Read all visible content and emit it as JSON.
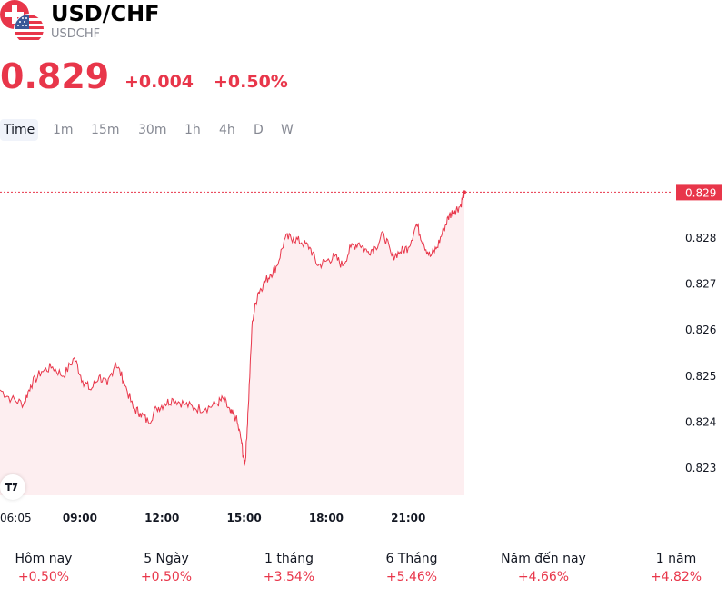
{
  "header": {
    "symbol": "USD/CHF",
    "ticker": "USDCHF"
  },
  "quote": {
    "price": "0.829",
    "change": "+0.004",
    "change_pct": "+0.50%"
  },
  "timeframes": [
    {
      "label": "Time",
      "active": true
    },
    {
      "label": "1m",
      "active": false
    },
    {
      "label": "15m",
      "active": false
    },
    {
      "label": "30m",
      "active": false
    },
    {
      "label": "1h",
      "active": false
    },
    {
      "label": "4h",
      "active": false
    },
    {
      "label": "D",
      "active": false
    },
    {
      "label": "W",
      "active": false
    }
  ],
  "periods": [
    {
      "label": "Hôm nay",
      "value": "+0.50%"
    },
    {
      "label": "5 Ngày",
      "value": "+0.50%"
    },
    {
      "label": "1 tháng",
      "value": "+3.54%"
    },
    {
      "label": "6 Tháng",
      "value": "+5.46%"
    },
    {
      "label": "Năm đến nay",
      "value": "+4.66%"
    },
    {
      "label": "1 năm",
      "value": "+4.82%"
    }
  ],
  "colors": {
    "accent": "#e8364a",
    "area_fill": "#fdeef0",
    "text": "#131722",
    "muted": "#868993"
  },
  "icons": {
    "flags": "usd-chf-flags-icon",
    "logo": "tradingview-logo-icon"
  },
  "chart_data": {
    "type": "area",
    "x_tick_labels": [
      "06:05",
      "09:00",
      "12:00",
      "15:00",
      "18:00",
      "21:00"
    ],
    "x_ticks": [
      6.08,
      9,
      12,
      15,
      18,
      21
    ],
    "y_tick_labels": [
      "0.823",
      "0.824",
      "0.825",
      "0.826",
      "0.827",
      "0.828",
      "0.829"
    ],
    "y_ticks": [
      0.823,
      0.824,
      0.825,
      0.826,
      0.827,
      0.828,
      0.829
    ],
    "ylim": [
      0.8224,
      0.8296
    ],
    "xlim": [
      6.08,
      23.2
    ],
    "last_value_label": "0.829",
    "grid": false,
    "series": [
      {
        "x": [
          6.08,
          6.5,
          6.95,
          7.2,
          7.6,
          8.0,
          8.4,
          8.8,
          9.1,
          9.4,
          9.7,
          10.0,
          10.3,
          10.6,
          10.95,
          11.2,
          11.5,
          11.8,
          12.1,
          12.4,
          12.8,
          13.2,
          13.6,
          14.0,
          14.25,
          14.5,
          14.7,
          14.9,
          15.0,
          15.05,
          15.15,
          15.3,
          15.5,
          15.7,
          15.95,
          16.2,
          16.5,
          16.8,
          17.1,
          17.4,
          17.7,
          18.0,
          18.3,
          18.6,
          18.9,
          19.2,
          19.5,
          19.8,
          20.1,
          20.4,
          20.7,
          21.0,
          21.3,
          21.55,
          21.8,
          22.05,
          22.3,
          22.5,
          22.7,
          22.9,
          23.05
        ],
        "y": [
          0.8247,
          0.8245,
          0.8244,
          0.8248,
          0.8251,
          0.8252,
          0.825,
          0.8254,
          0.8249,
          0.8247,
          0.825,
          0.8248,
          0.8253,
          0.8249,
          0.8243,
          0.8242,
          0.824,
          0.8243,
          0.8244,
          0.8245,
          0.8244,
          0.8243,
          0.8243,
          0.8244,
          0.8245,
          0.8242,
          0.8241,
          0.8236,
          0.8231,
          0.8232,
          0.8243,
          0.8262,
          0.8268,
          0.827,
          0.8272,
          0.8274,
          0.828,
          0.828,
          0.8279,
          0.8278,
          0.8274,
          0.8275,
          0.8276,
          0.8274,
          0.8278,
          0.8279,
          0.8277,
          0.8278,
          0.8281,
          0.8276,
          0.8277,
          0.8278,
          0.8283,
          0.8279,
          0.8276,
          0.8278,
          0.8282,
          0.8285,
          0.8286,
          0.8287,
          0.829
        ]
      }
    ]
  }
}
